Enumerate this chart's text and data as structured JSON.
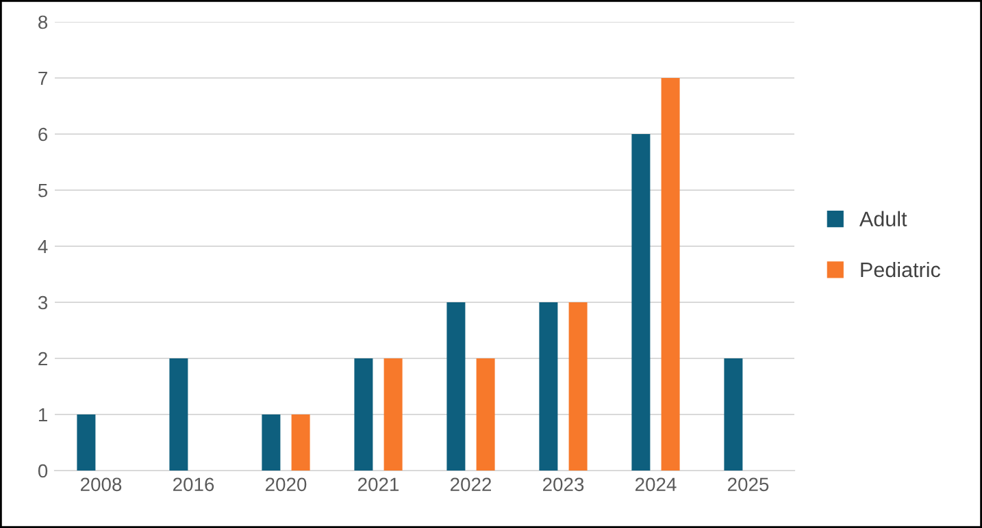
{
  "chart_data": {
    "type": "bar",
    "categories": [
      "2008",
      "2016",
      "2020",
      "2021",
      "2022",
      "2023",
      "2024",
      "2025"
    ],
    "series": [
      {
        "name": "Adult",
        "color": "#0e5f7e",
        "values": [
          1,
          2,
          1,
          2,
          3,
          3,
          6,
          2
        ]
      },
      {
        "name": "Pediatric",
        "color": "#f7792b",
        "values": [
          null,
          null,
          1,
          2,
          2,
          3,
          7,
          null
        ]
      }
    ],
    "ylim": [
      0,
      8
    ],
    "yticks": [
      0,
      1,
      2,
      3,
      4,
      5,
      6,
      7,
      8
    ],
    "grid": "y",
    "legend": "right"
  }
}
